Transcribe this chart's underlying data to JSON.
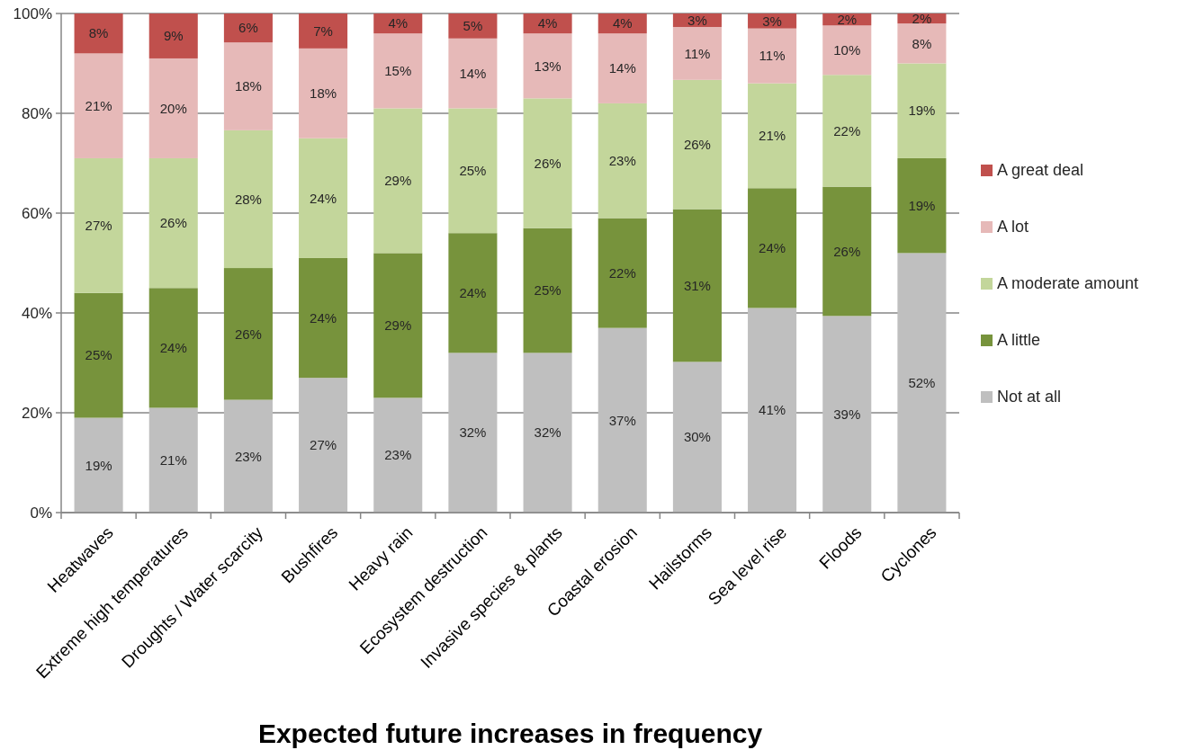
{
  "chart_data": {
    "type": "bar",
    "stacked": true,
    "xlabel": "Expected future increases in frequency",
    "categories": [
      "Heatwaves",
      "Extreme high temperatures",
      "Droughts / Water scarcity",
      "Bushfires",
      "Heavy rain",
      "Ecosystem destruction",
      "Invasive species & plants",
      "Coastal erosion",
      "Hailstorms",
      "Sea level rise",
      "Floods",
      "Cyclones"
    ],
    "series": [
      {
        "name": "Not at all",
        "color": "#bfbfbf",
        "values": [
          19,
          21,
          22.6,
          27,
          23,
          32,
          32,
          37,
          30.2,
          41,
          39.4,
          52
        ],
        "value_labels": [
          "19%",
          "21%",
          "23%",
          "27%",
          "23%",
          "32%",
          "32%",
          "37%",
          "30%",
          "41%",
          "39%",
          "52%"
        ]
      },
      {
        "name": "A little",
        "color": "#77933c",
        "values": [
          25,
          24,
          26.4,
          24,
          29,
          24,
          25,
          22,
          30.6,
          24,
          25.9,
          19
        ],
        "value_labels": [
          "25%",
          "24%",
          "26%",
          "24%",
          "29%",
          "24%",
          "25%",
          "22%",
          "31%",
          "24%",
          "26%",
          "19%"
        ]
      },
      {
        "name": "A moderate amount",
        "color": "#c3d69b",
        "values": [
          27,
          26,
          27.6,
          24,
          29,
          25,
          26,
          23,
          25.9,
          21,
          22.4,
          19
        ],
        "value_labels": [
          "27%",
          "26%",
          "28%",
          "24%",
          "29%",
          "25%",
          "26%",
          "23%",
          "26%",
          "21%",
          "22%",
          "19%"
        ]
      },
      {
        "name": "A lot",
        "color": "#e6b9b8",
        "values": [
          21,
          20,
          17.6,
          18,
          15,
          14,
          13,
          14,
          10.6,
          11,
          9.9,
          8
        ],
        "value_labels": [
          "21%",
          "20%",
          "18%",
          "18%",
          "15%",
          "14%",
          "13%",
          "14%",
          "11%",
          "11%",
          "10%",
          "8%"
        ]
      },
      {
        "name": "A great deal",
        "color": "#c0504d",
        "values": [
          8,
          9,
          5.8,
          7,
          4,
          5,
          4,
          4,
          2.7,
          3,
          2.4,
          2
        ],
        "value_labels": [
          "8%",
          "9%",
          "6%",
          "7%",
          "4%",
          "5%",
          "4%",
          "4%",
          "3%",
          "3%",
          "2%",
          "2%"
        ]
      }
    ],
    "ylim": [
      0,
      100
    ],
    "yticks": [
      {
        "value": 0,
        "label": "0%"
      },
      {
        "value": 20,
        "label": "20%"
      },
      {
        "value": 40,
        "label": "40%"
      },
      {
        "value": 60,
        "label": "60%"
      },
      {
        "value": 80,
        "label": "80%"
      },
      {
        "value": 100,
        "label": "100%"
      }
    ],
    "grid": "y",
    "legend": "right"
  }
}
